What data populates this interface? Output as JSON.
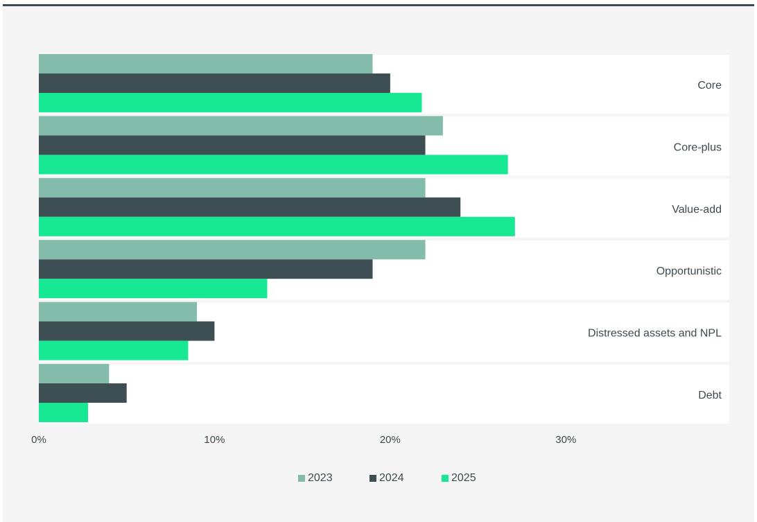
{
  "chart_data": {
    "type": "bar",
    "orientation": "horizontal",
    "categories": [
      "Core",
      "Core-plus",
      "Value-add",
      "Opportunistic",
      "Distressed assets and NPL",
      "Debt"
    ],
    "series": [
      {
        "name": "2023",
        "color": "#84bcab",
        "values": [
          19,
          23,
          22,
          22,
          9,
          4
        ]
      },
      {
        "name": "2024",
        "color": "#3e4f53",
        "values": [
          20,
          22,
          24,
          19,
          10,
          5
        ]
      },
      {
        "name": "2025",
        "color": "#16e893",
        "values": [
          21.8,
          26.7,
          27.1,
          13,
          8.5,
          2.8
        ]
      }
    ],
    "x_ticks": [
      "0%",
      "10%",
      "20%",
      "30%"
    ],
    "x_tick_values": [
      0,
      10,
      20,
      30
    ],
    "xlim": [
      0,
      39.3
    ],
    "legend_position": "bottom",
    "grid": false
  }
}
